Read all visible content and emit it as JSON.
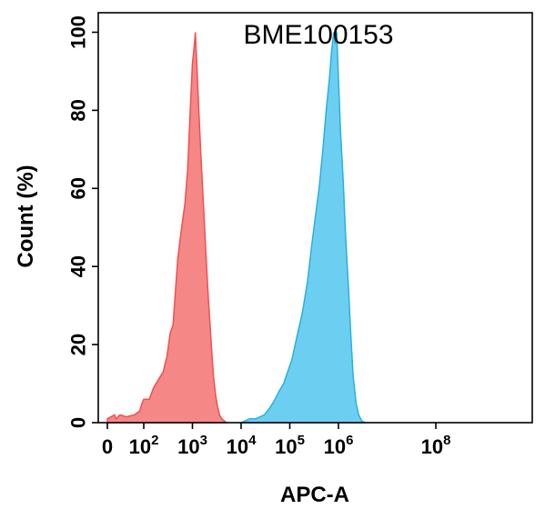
{
  "chart_data": {
    "type": "area",
    "title": "BME100153",
    "xlabel": "APC-A",
    "ylabel": "Count (%)",
    "x_scale": "log",
    "xlim": [
      0,
      100000000
    ],
    "ylim": [
      0,
      105
    ],
    "grid": false,
    "legend": "none",
    "y_ticks": [
      {
        "value": 0,
        "label": "0"
      },
      {
        "value": 20,
        "label": "20"
      },
      {
        "value": 40,
        "label": "40"
      },
      {
        "value": 60,
        "label": "60"
      },
      {
        "value": 80,
        "label": "80"
      },
      {
        "value": 100,
        "label": "100"
      }
    ],
    "x_ticks": [
      {
        "value": 0,
        "base": "0",
        "exp": ""
      },
      {
        "value": 100,
        "base": "10",
        "exp": "2"
      },
      {
        "value": 1000,
        "base": "10",
        "exp": "3"
      },
      {
        "value": 10000,
        "base": "10",
        "exp": "4"
      },
      {
        "value": 100000,
        "base": "10",
        "exp": "5"
      },
      {
        "value": 1000000,
        "base": "10",
        "exp": "6"
      },
      {
        "value": 100000000,
        "base": "10",
        "exp": "8"
      }
    ],
    "series": [
      {
        "color": "#f25050",
        "fill": "#f47a7a",
        "points": [
          [
            0,
            1
          ],
          [
            1.5,
            2
          ],
          [
            2,
            1
          ],
          [
            4,
            2
          ],
          [
            10,
            1.5
          ],
          [
            30,
            2
          ],
          [
            60,
            3
          ],
          [
            80,
            5
          ],
          [
            100,
            6
          ],
          [
            130,
            6
          ],
          [
            160,
            9
          ],
          [
            200,
            11
          ],
          [
            250,
            13
          ],
          [
            300,
            17
          ],
          [
            350,
            23
          ],
          [
            400,
            25
          ],
          [
            450,
            34
          ],
          [
            500,
            42
          ],
          [
            560,
            47
          ],
          [
            630,
            52
          ],
          [
            700,
            56
          ],
          [
            800,
            65
          ],
          [
            900,
            80
          ],
          [
            1000,
            92
          ],
          [
            1100,
            97
          ],
          [
            1150,
            100
          ],
          [
            1250,
            90
          ],
          [
            1350,
            80
          ],
          [
            1500,
            68
          ],
          [
            1700,
            55
          ],
          [
            1900,
            43
          ],
          [
            2100,
            33
          ],
          [
            2300,
            25
          ],
          [
            2500,
            18
          ],
          [
            2700,
            12
          ],
          [
            3000,
            7
          ],
          [
            3300,
            4
          ],
          [
            3600,
            2
          ],
          [
            4000,
            1
          ],
          [
            5000,
            0
          ]
        ]
      },
      {
        "color": "#29b0e0",
        "fill": "#5ccaf0",
        "points": [
          [
            10000,
            0
          ],
          [
            15000,
            1
          ],
          [
            20000,
            1
          ],
          [
            30000,
            2
          ],
          [
            40000,
            4
          ],
          [
            50000,
            6
          ],
          [
            60000,
            8
          ],
          [
            75000,
            10
          ],
          [
            90000,
            13
          ],
          [
            110000,
            16
          ],
          [
            140000,
            22
          ],
          [
            180000,
            28
          ],
          [
            230000,
            36
          ],
          [
            280000,
            45
          ],
          [
            330000,
            52
          ],
          [
            400000,
            60
          ],
          [
            480000,
            70
          ],
          [
            560000,
            80
          ],
          [
            650000,
            88
          ],
          [
            720000,
            95
          ],
          [
            800000,
            100
          ],
          [
            860000,
            97
          ],
          [
            920000,
            100
          ],
          [
            1000000,
            88
          ],
          [
            1100000,
            75
          ],
          [
            1250000,
            62
          ],
          [
            1400000,
            48
          ],
          [
            1600000,
            35
          ],
          [
            1800000,
            22
          ],
          [
            2000000,
            12
          ],
          [
            2300000,
            5
          ],
          [
            2600000,
            2
          ],
          [
            3000000,
            0.5
          ],
          [
            3500000,
            0
          ]
        ]
      }
    ]
  }
}
